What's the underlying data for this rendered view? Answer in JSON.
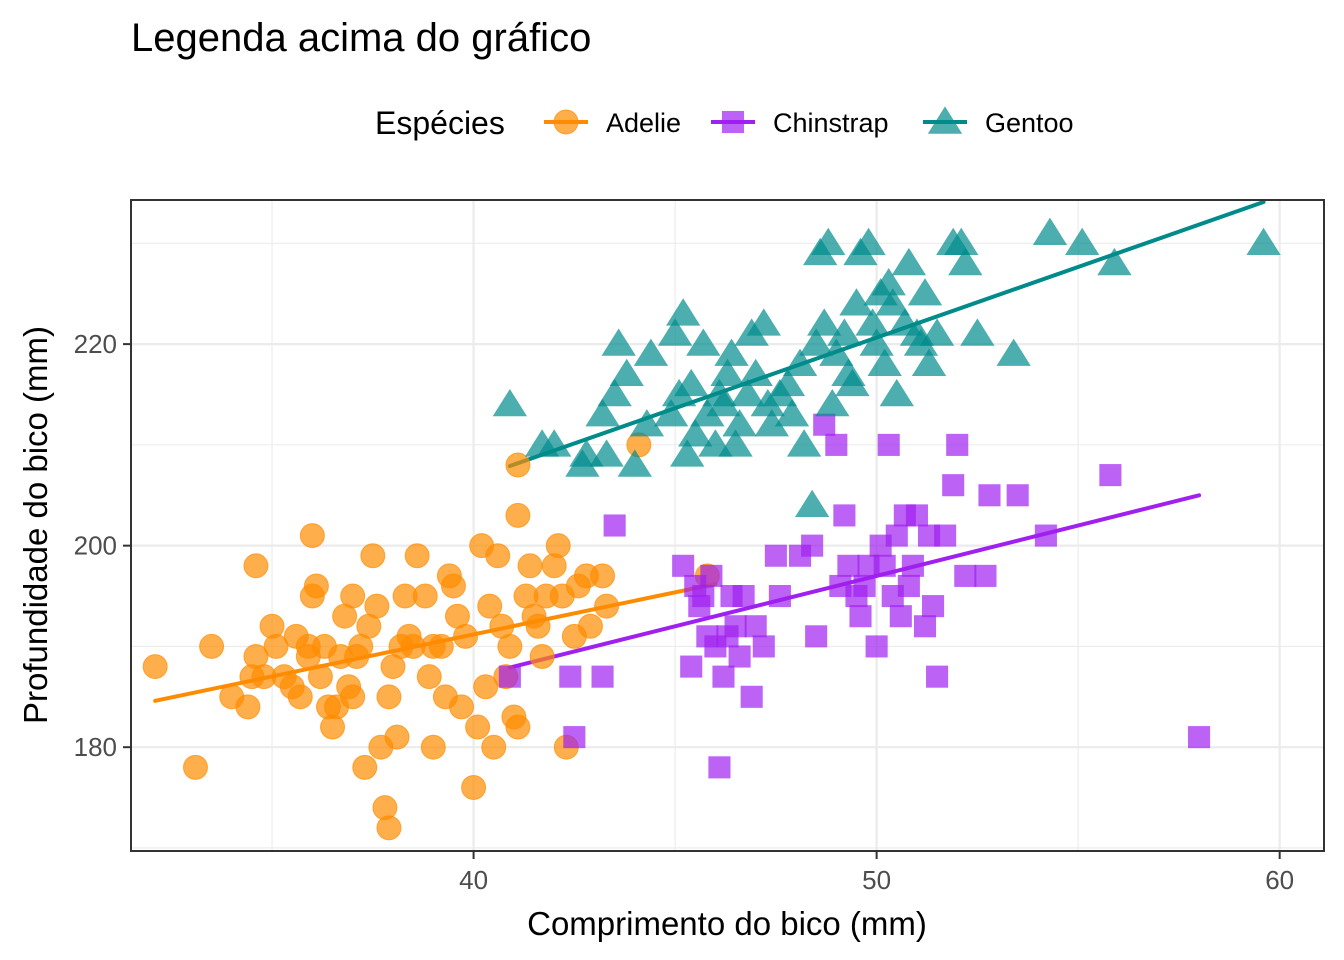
{
  "chart_data": {
    "type": "scatter",
    "title": "Legenda acima do gráfico",
    "xlabel": "Comprimento do bico (mm)",
    "ylabel": "Profundidade do bico (mm)",
    "xlim": [
      31.5,
      61.1
    ],
    "ylim": [
      169.7,
      234.3
    ],
    "x_ticks": [
      40,
      50,
      60
    ],
    "y_ticks": [
      180,
      200,
      220
    ],
    "grid": true,
    "legend": {
      "title": "Espécies",
      "position": "top"
    },
    "series": [
      {
        "name": "Adelie",
        "marker": "circle",
        "color": "#FF8C00",
        "trend": [
          [
            32.1,
            184.6
          ],
          [
            46.0,
            196.2
          ]
        ],
        "points": [
          [
            32.1,
            188
          ],
          [
            33.1,
            178
          ],
          [
            33.5,
            190
          ],
          [
            34.0,
            185
          ],
          [
            34.4,
            184
          ],
          [
            34.5,
            187
          ],
          [
            34.6,
            198
          ],
          [
            34.6,
            189
          ],
          [
            35.0,
            192
          ],
          [
            35.1,
            190
          ],
          [
            35.3,
            187
          ],
          [
            35.5,
            186
          ],
          [
            35.7,
            185
          ],
          [
            35.9,
            190
          ],
          [
            36.0,
            195
          ],
          [
            36.2,
            187
          ],
          [
            36.4,
            184
          ],
          [
            36.5,
            182
          ],
          [
            36.6,
            184
          ],
          [
            36.8,
            193
          ],
          [
            37.0,
            185
          ],
          [
            37.2,
            190
          ],
          [
            37.3,
            178
          ],
          [
            37.5,
            199
          ],
          [
            37.6,
            194
          ],
          [
            37.7,
            180
          ],
          [
            37.8,
            174
          ],
          [
            37.9,
            172
          ],
          [
            38.1,
            181
          ],
          [
            38.2,
            190
          ],
          [
            38.5,
            190
          ],
          [
            38.6,
            199
          ],
          [
            38.8,
            195
          ],
          [
            39.0,
            190
          ],
          [
            39.2,
            190
          ],
          [
            39.5,
            196
          ],
          [
            39.6,
            193
          ],
          [
            39.7,
            184
          ],
          [
            40.2,
            200
          ],
          [
            40.3,
            186
          ],
          [
            40.5,
            180
          ],
          [
            40.6,
            199
          ],
          [
            40.8,
            187
          ],
          [
            40.9,
            190
          ],
          [
            41.1,
            203
          ],
          [
            41.3,
            195
          ],
          [
            41.5,
            193
          ],
          [
            41.6,
            192
          ],
          [
            41.8,
            195
          ],
          [
            42.0,
            198
          ],
          [
            42.1,
            200
          ],
          [
            42.2,
            195
          ],
          [
            42.3,
            180
          ],
          [
            42.5,
            191
          ],
          [
            42.8,
            197
          ],
          [
            43.2,
            197
          ],
          [
            44.1,
            210
          ],
          [
            45.8,
            197
          ],
          [
            41.1,
            208
          ],
          [
            41.1,
            182
          ],
          [
            36.0,
            201
          ],
          [
            37.0,
            195
          ],
          [
            38.0,
            188
          ],
          [
            39.0,
            180
          ],
          [
            40.0,
            176
          ],
          [
            36.3,
            190
          ],
          [
            36.7,
            189
          ],
          [
            37.4,
            192
          ],
          [
            38.4,
            191
          ],
          [
            39.3,
            185
          ],
          [
            40.1,
            182
          ],
          [
            40.7,
            192
          ],
          [
            41.4,
            198
          ],
          [
            42.6,
            196
          ],
          [
            43.3,
            194
          ],
          [
            35.9,
            189
          ],
          [
            36.9,
            186
          ],
          [
            38.9,
            187
          ],
          [
            39.8,
            191
          ],
          [
            41.0,
            183
          ],
          [
            34.8,
            187
          ],
          [
            35.6,
            191
          ],
          [
            37.1,
            189
          ],
          [
            38.3,
            195
          ],
          [
            39.4,
            197
          ],
          [
            40.4,
            194
          ],
          [
            41.7,
            189
          ],
          [
            42.9,
            192
          ],
          [
            36.1,
            196
          ],
          [
            37.9,
            185
          ]
        ]
      },
      {
        "name": "Chinstrap",
        "marker": "square",
        "color": "#A020F0",
        "trend": [
          [
            40.9,
            187.9
          ],
          [
            58.0,
            205.0
          ]
        ],
        "points": [
          [
            40.9,
            187
          ],
          [
            42.4,
            187
          ],
          [
            42.5,
            181
          ],
          [
            43.2,
            187
          ],
          [
            43.5,
            202
          ],
          [
            45.2,
            198
          ],
          [
            45.4,
            188
          ],
          [
            45.5,
            196
          ],
          [
            45.6,
            194
          ],
          [
            45.7,
            195
          ],
          [
            45.8,
            191
          ],
          [
            46.0,
            190
          ],
          [
            46.1,
            178
          ],
          [
            46.2,
            187
          ],
          [
            46.4,
            195
          ],
          [
            46.5,
            192
          ],
          [
            46.6,
            189
          ],
          [
            46.7,
            195
          ],
          [
            46.9,
            185
          ],
          [
            47.0,
            192
          ],
          [
            47.5,
            199
          ],
          [
            47.6,
            195
          ],
          [
            48.1,
            199
          ],
          [
            48.5,
            191
          ],
          [
            48.7,
            212
          ],
          [
            49.0,
            210
          ],
          [
            49.2,
            203
          ],
          [
            49.3,
            198
          ],
          [
            49.5,
            195
          ],
          [
            49.6,
            193
          ],
          [
            49.7,
            196
          ],
          [
            49.8,
            198
          ],
          [
            50.0,
            190
          ],
          [
            50.1,
            200
          ],
          [
            50.2,
            198
          ],
          [
            50.3,
            210
          ],
          [
            50.5,
            201
          ],
          [
            50.6,
            193
          ],
          [
            50.7,
            203
          ],
          [
            50.8,
            196
          ],
          [
            51.0,
            203
          ],
          [
            51.3,
            201
          ],
          [
            51.4,
            194
          ],
          [
            51.5,
            187
          ],
          [
            51.7,
            201
          ],
          [
            51.9,
            206
          ],
          [
            52.0,
            210
          ],
          [
            52.2,
            197
          ],
          [
            52.7,
            197
          ],
          [
            52.8,
            205
          ],
          [
            53.5,
            205
          ],
          [
            54.2,
            201
          ],
          [
            55.8,
            207
          ],
          [
            58.0,
            181
          ],
          [
            46.3,
            191
          ],
          [
            47.2,
            190
          ],
          [
            49.1,
            196
          ],
          [
            50.4,
            195
          ],
          [
            51.2,
            192
          ],
          [
            45.9,
            197
          ],
          [
            48.4,
            200
          ],
          [
            50.9,
            198
          ]
        ]
      },
      {
        "name": "Gentoo",
        "marker": "triangle",
        "color": "#008B8B",
        "trend": [
          [
            40.9,
            207.9
          ],
          [
            59.6,
            234.1
          ]
        ],
        "points": [
          [
            40.9,
            214
          ],
          [
            41.7,
            210
          ],
          [
            42.0,
            210
          ],
          [
            42.7,
            208
          ],
          [
            42.8,
            209
          ],
          [
            43.2,
            213
          ],
          [
            43.3,
            209
          ],
          [
            43.5,
            215
          ],
          [
            43.6,
            220
          ],
          [
            43.8,
            217
          ],
          [
            44.0,
            208
          ],
          [
            44.4,
            219
          ],
          [
            44.9,
            213
          ],
          [
            45.1,
            215
          ],
          [
            45.2,
            223
          ],
          [
            45.3,
            209
          ],
          [
            45.5,
            211
          ],
          [
            45.7,
            220
          ],
          [
            46.0,
            210
          ],
          [
            46.1,
            215
          ],
          [
            46.3,
            217
          ],
          [
            46.5,
            210
          ],
          [
            46.8,
            215
          ],
          [
            47.0,
            217
          ],
          [
            47.2,
            222
          ],
          [
            47.4,
            212
          ],
          [
            47.6,
            215
          ],
          [
            48.2,
            210
          ],
          [
            48.4,
            204
          ],
          [
            48.5,
            220
          ],
          [
            48.6,
            229
          ],
          [
            48.7,
            222
          ],
          [
            48.8,
            230
          ],
          [
            49.0,
            219
          ],
          [
            49.2,
            221
          ],
          [
            49.3,
            217
          ],
          [
            49.4,
            216
          ],
          [
            49.5,
            224
          ],
          [
            49.6,
            229
          ],
          [
            49.8,
            230
          ],
          [
            50.0,
            220
          ],
          [
            50.1,
            225
          ],
          [
            50.2,
            218
          ],
          [
            50.4,
            224
          ],
          [
            50.5,
            215
          ],
          [
            50.7,
            222
          ],
          [
            50.8,
            228
          ],
          [
            51.0,
            221
          ],
          [
            51.1,
            220
          ],
          [
            51.3,
            218
          ],
          [
            51.5,
            221
          ],
          [
            51.9,
            230
          ],
          [
            52.1,
            230
          ],
          [
            52.2,
            228
          ],
          [
            52.5,
            221
          ],
          [
            53.4,
            219
          ],
          [
            54.3,
            231
          ],
          [
            55.1,
            230
          ],
          [
            55.9,
            228
          ],
          [
            59.6,
            230
          ],
          [
            46.2,
            214
          ],
          [
            47.3,
            214
          ],
          [
            48.9,
            214
          ],
          [
            45.8,
            213
          ],
          [
            46.6,
            212
          ],
          [
            47.8,
            216
          ],
          [
            49.9,
            222
          ],
          [
            44.3,
            212
          ],
          [
            45.4,
            216
          ],
          [
            46.9,
            221
          ],
          [
            48.1,
            218
          ],
          [
            50.3,
            226
          ],
          [
            51.2,
            225
          ],
          [
            47.9,
            213
          ],
          [
            45.0,
            221
          ],
          [
            46.4,
            219
          ]
        ]
      }
    ]
  }
}
